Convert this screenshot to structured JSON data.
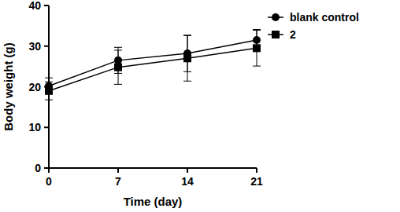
{
  "chart_data": {
    "type": "line",
    "x_label": "Time (day)",
    "y_label": "Body weight (g)",
    "x": [
      0,
      7,
      14,
      21
    ],
    "xlim": [
      0,
      21
    ],
    "xticks": [
      0,
      7,
      14,
      21
    ],
    "ylim": [
      0,
      40
    ],
    "yticks": [
      0,
      10,
      20,
      30,
      40
    ],
    "grid": false,
    "legend": "right",
    "series": [
      {
        "name": "blank control",
        "color": "#000000",
        "marker": "circle",
        "line_style": "solid",
        "values": [
          20.2,
          26.5,
          28.2,
          31.5
        ],
        "errors": [
          2.0,
          3.2,
          4.5,
          2.6
        ]
      },
      {
        "name": "2",
        "color": "#000000",
        "marker": "square",
        "line_style": "solid",
        "values": [
          19.0,
          24.8,
          27.0,
          29.5
        ],
        "errors": [
          2.2,
          4.2,
          5.6,
          4.4
        ]
      }
    ]
  }
}
